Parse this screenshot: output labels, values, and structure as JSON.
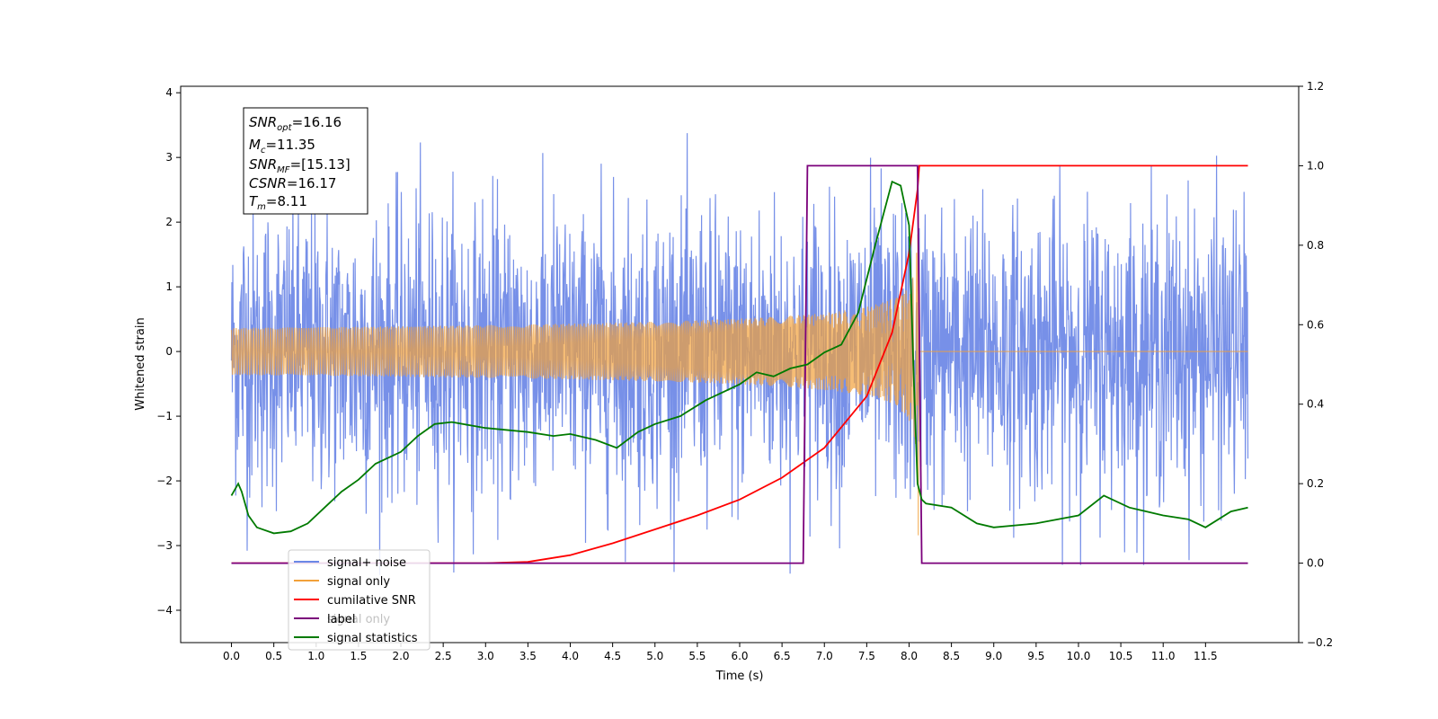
{
  "chart_data": {
    "type": "line",
    "xlabel": "Time (s)",
    "ylabel": "Whitened strain",
    "xlim": [
      -0.6,
      12.6
    ],
    "ylim": [
      -4.5,
      4.1
    ],
    "y2lim": [
      -0.2,
      1.2
    ],
    "x_ticks": [
      "0.0",
      "0.5",
      "1.0",
      "1.5",
      "2.0",
      "2.5",
      "3.0",
      "3.5",
      "4.0",
      "4.5",
      "5.0",
      "5.5",
      "6.0",
      "6.5",
      "7.0",
      "7.5",
      "8.0",
      "8.5",
      "9.0",
      "9.5",
      "10.0",
      "10.5",
      "11.0",
      "11.5"
    ],
    "y_ticks": [
      "4",
      "3",
      "2",
      "1",
      "0",
      "−1",
      "−2",
      "−3",
      "−4"
    ],
    "y2_ticks": [
      "1.2",
      "1.0",
      "0.8",
      "0.6",
      "0.4",
      "0.2",
      "0.0",
      "−0.2"
    ],
    "legend_position": "lower-left",
    "colors": {
      "signal_noise": "#6b87e6",
      "signal_only": "#f2a13a",
      "cumulative_snr": "#ff0000",
      "label": "#7b007b",
      "signal_statistics": "#007a00"
    },
    "info_box": {
      "snr_opt": {
        "sym": "SNR",
        "sub": "opt",
        "val": "=16.16"
      },
      "mc": {
        "sym": "M",
        "sub": "c",
        "val": "=11.35"
      },
      "snr_mf": {
        "sym": "SNR",
        "sub": "MF",
        "val": "=[15.13]"
      },
      "csnr": {
        "sym": "CSNR",
        "sub": "",
        "val": "=16.17"
      },
      "tm": {
        "sym": "T",
        "sub": "m",
        "val": "=8.11"
      }
    },
    "series": [
      {
        "name": "signal+ noise",
        "axis": "left",
        "x_range": [
          0.0,
          12.0
        ],
        "sigma": 1.0,
        "envelope": [
          1.2,
          3.3
        ]
      },
      {
        "name": "signal only",
        "axis": "left",
        "x_range": [
          0.0,
          12.0
        ],
        "merger_time": 8.11,
        "peak_amplitude": 2.9
      },
      {
        "name": "cumilative SNR",
        "axis": "right",
        "x": [
          0.0,
          3.0,
          3.5,
          4.0,
          4.5,
          5.0,
          5.5,
          6.0,
          6.5,
          7.0,
          7.5,
          7.8,
          8.0,
          8.1,
          8.12,
          12.0
        ],
        "y": [
          0.0,
          0.0,
          0.003,
          0.02,
          0.05,
          0.085,
          0.12,
          0.16,
          0.215,
          0.29,
          0.42,
          0.58,
          0.78,
          0.94,
          1.0,
          1.0
        ]
      },
      {
        "name": "label",
        "axis": "right",
        "x": [
          0.0,
          6.75,
          6.8,
          8.1,
          8.15,
          12.0
        ],
        "y": [
          0.0,
          0.0,
          1.0,
          1.0,
          0.0,
          0.0
        ]
      },
      {
        "name": "signal only",
        "axis": "right",
        "x": [],
        "y": []
      },
      {
        "name": "signal statistics",
        "axis": "right",
        "x": [
          0.0,
          0.08,
          0.12,
          0.2,
          0.3,
          0.5,
          0.7,
          0.9,
          1.1,
          1.3,
          1.5,
          1.7,
          2.0,
          2.2,
          2.4,
          2.6,
          3.0,
          3.5,
          3.8,
          4.0,
          4.3,
          4.55,
          4.8,
          5.0,
          5.3,
          5.6,
          5.8,
          6.0,
          6.2,
          6.4,
          6.6,
          6.8,
          7.0,
          7.2,
          7.4,
          7.6,
          7.8,
          7.9,
          8.0,
          8.05,
          8.1,
          8.15,
          8.2,
          8.5,
          8.8,
          9.0,
          9.5,
          10.0,
          10.3,
          10.6,
          11.0,
          11.3,
          11.5,
          11.8,
          12.0
        ],
        "y": [
          0.17,
          0.2,
          0.18,
          0.12,
          0.09,
          0.075,
          0.08,
          0.1,
          0.14,
          0.18,
          0.21,
          0.25,
          0.28,
          0.32,
          0.35,
          0.355,
          0.34,
          0.33,
          0.32,
          0.325,
          0.31,
          0.29,
          0.33,
          0.35,
          0.37,
          0.41,
          0.43,
          0.45,
          0.48,
          0.47,
          0.49,
          0.5,
          0.53,
          0.55,
          0.63,
          0.8,
          0.96,
          0.95,
          0.85,
          0.5,
          0.2,
          0.16,
          0.15,
          0.14,
          0.1,
          0.09,
          0.1,
          0.12,
          0.17,
          0.14,
          0.12,
          0.11,
          0.09,
          0.13,
          0.14
        ]
      }
    ]
  }
}
